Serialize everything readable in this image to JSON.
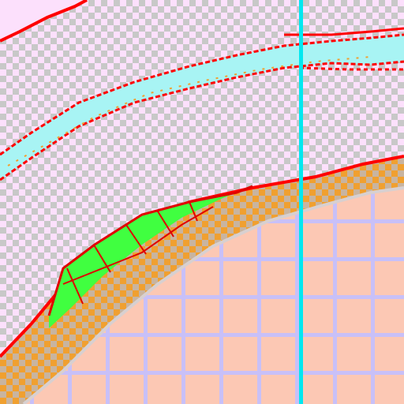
{
  "editor": {
    "layers": [
      {
        "name": "transparent-background",
        "pattern": "checker"
      },
      {
        "name": "top-boundary",
        "color": "#ff0000"
      },
      {
        "name": "upper-channel",
        "fill": "#a8f4f4",
        "border": "#ff0000",
        "accent": "#f0a030"
      },
      {
        "name": "lower-band",
        "fill": "#f0a030",
        "checker": "#c8c8c8",
        "outline": "#ff0000"
      },
      {
        "name": "green-patch",
        "fill": "#40ff40",
        "outline": "#e00000"
      },
      {
        "name": "floor-grid",
        "fill": "#fcc8b4",
        "line": "#c8c0f8"
      },
      {
        "name": "vertical-guide",
        "color": "#00e8f0"
      }
    ],
    "colors": {
      "pink": "#fce0fc",
      "checker_grey": "#c8c8c8",
      "red": "#ff0000",
      "dark_red": "#e00000",
      "orange": "#f0a030",
      "cyan_fill": "#a8f4f4",
      "green": "#40ff40",
      "salmon": "#fcc8b4",
      "lavender": "#c8c0f8",
      "guide_cyan": "#00e8f0"
    }
  }
}
